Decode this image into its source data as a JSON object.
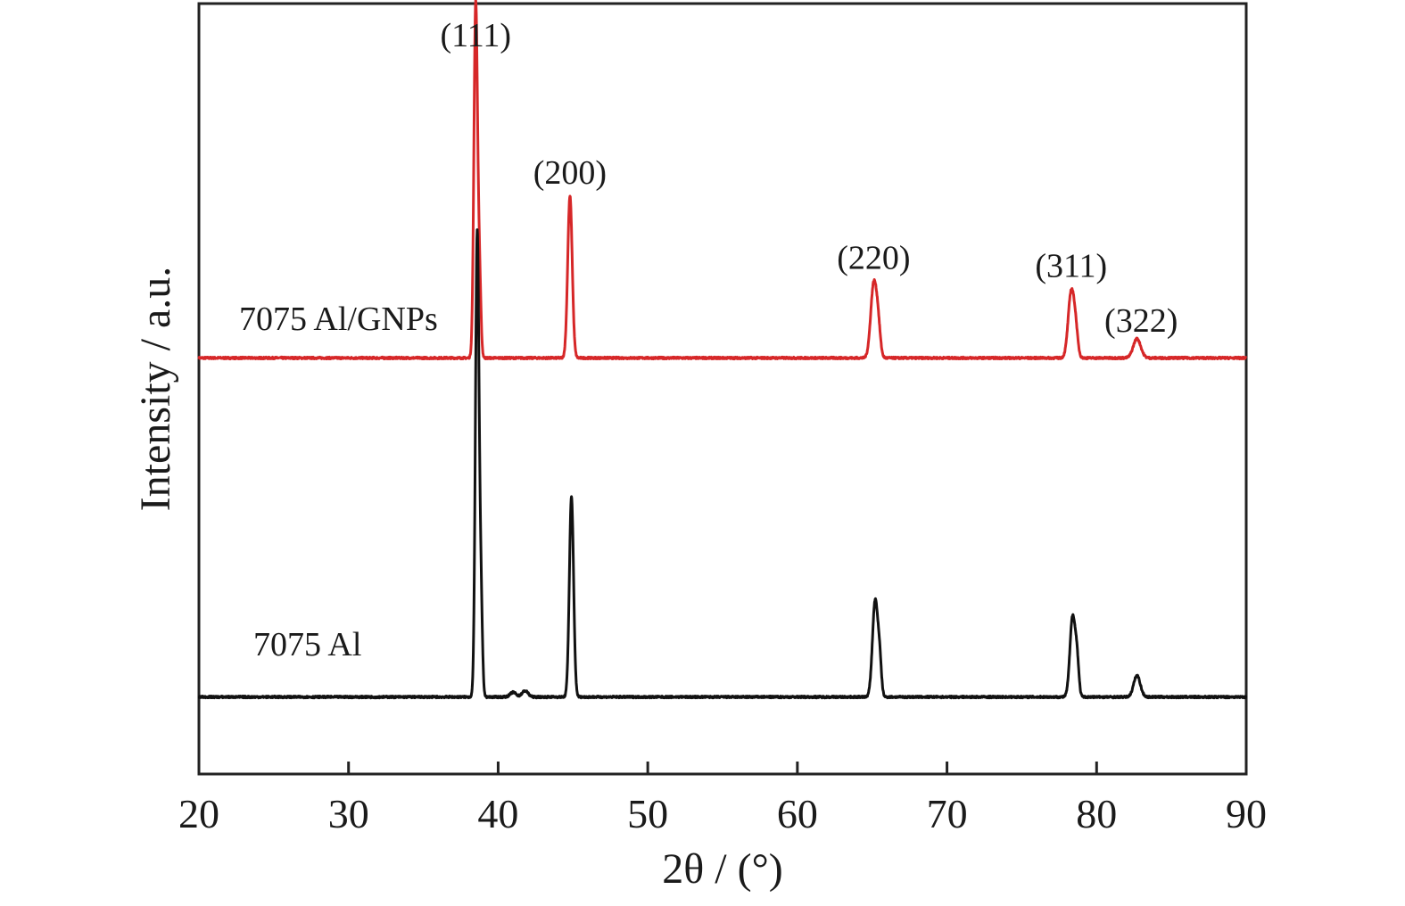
{
  "chart_data": {
    "type": "line",
    "xlabel": "2θ / (°)",
    "ylabel": "Intensity / a.u.",
    "xlim": [
      20,
      90
    ],
    "xticks": [
      "20",
      "30",
      "40",
      "50",
      "60",
      "70",
      "80",
      "90"
    ],
    "ylim": [
      0,
      100
    ],
    "grid": false,
    "legend": "none",
    "annotations": [
      {
        "text": "(111)",
        "x": 38.5
      },
      {
        "text": "(200)",
        "x": 44.8
      },
      {
        "text": "(220)",
        "x": 65.1
      },
      {
        "text": "(311)",
        "x": 78.3
      },
      {
        "text": "(322)",
        "x": 82.5
      }
    ],
    "series": [
      {
        "name": "7075 Al/GNPs",
        "color": "#d62728",
        "baseline": 54,
        "peaks": [
          {
            "x": 38.5,
            "height": 46,
            "width": 0.12
          },
          {
            "x": 38.75,
            "height": 10,
            "width": 0.1
          },
          {
            "x": 44.8,
            "height": 21,
            "width": 0.15
          },
          {
            "x": 65.1,
            "height": 9.5,
            "width": 0.2
          },
          {
            "x": 65.4,
            "height": 3.5,
            "width": 0.15
          },
          {
            "x": 78.3,
            "height": 8.5,
            "width": 0.2
          },
          {
            "x": 78.6,
            "height": 3,
            "width": 0.15
          },
          {
            "x": 82.7,
            "height": 2.5,
            "width": 0.25
          }
        ]
      },
      {
        "name": "7075 Al",
        "color": "#111111",
        "baseline": 10,
        "peaks": [
          {
            "x": 38.6,
            "height": 60,
            "width": 0.12
          },
          {
            "x": 38.85,
            "height": 12,
            "width": 0.1
          },
          {
            "x": 44.9,
            "height": 26,
            "width": 0.14
          },
          {
            "x": 65.2,
            "height": 12.5,
            "width": 0.18
          },
          {
            "x": 65.5,
            "height": 4,
            "width": 0.12
          },
          {
            "x": 78.4,
            "height": 10.5,
            "width": 0.18
          },
          {
            "x": 78.7,
            "height": 4,
            "width": 0.12
          },
          {
            "x": 82.7,
            "height": 2.8,
            "width": 0.22
          },
          {
            "x": 41.0,
            "height": 0.6,
            "width": 0.2
          },
          {
            "x": 41.8,
            "height": 0.8,
            "width": 0.2
          }
        ]
      }
    ]
  }
}
